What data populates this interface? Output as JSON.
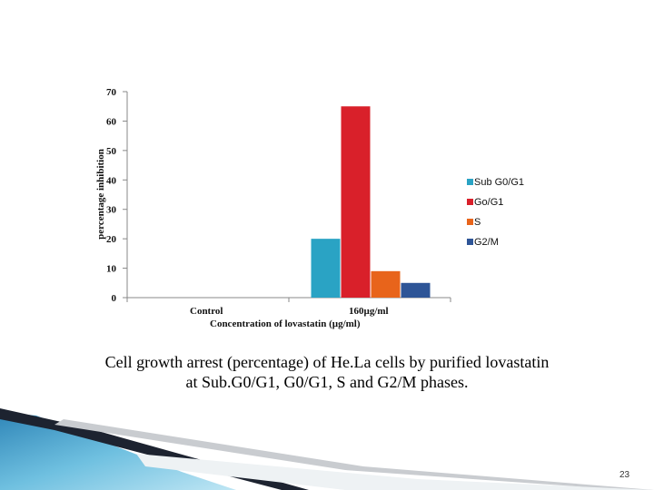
{
  "chart_data": {
    "type": "bar",
    "categories": [
      "Control",
      "160µg/ml"
    ],
    "series": [
      {
        "name": "Sub G0/G1",
        "values": [
          0,
          20
        ],
        "color": "#2aa3c4"
      },
      {
        "name": "Go/G1",
        "values": [
          0,
          65
        ],
        "color": "#d9202a"
      },
      {
        "name": "S",
        "values": [
          0,
          9
        ],
        "color": "#e8641b"
      },
      {
        "name": "G2/M",
        "values": [
          0,
          5
        ],
        "color": "#2e5597"
      }
    ],
    "title": "",
    "xlabel": "Concentration of lovastatin (µg/ml)",
    "ylabel": "percentage inhibition",
    "ylim": [
      0,
      70
    ],
    "yticks": [
      "0",
      "10",
      "20",
      "30",
      "40",
      "50",
      "60",
      "70"
    ],
    "legend_position": "right"
  },
  "caption": {
    "line1": "Cell growth arrest (percentage) of He.La cells by purified lovastatin",
    "line2": "at Sub.G0/G1, G0/G1, S and G2/M phases."
  },
  "page_number": "23"
}
